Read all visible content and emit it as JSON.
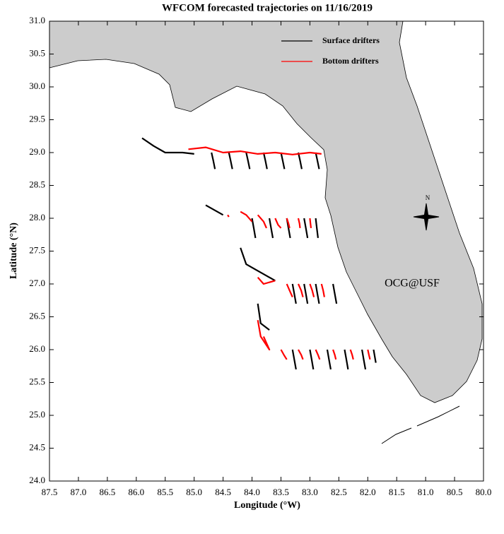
{
  "chart_data": {
    "type": "map",
    "title": "WFCOM forecasted trajectories on 11/16/2019",
    "xlabel": "Longitude (°W)",
    "ylabel": "Latitude (°N)",
    "xlim": [
      87.5,
      80.0
    ],
    "ylim": [
      24.0,
      31.0
    ],
    "xticks": [
      87.5,
      {
        "value": 87,
        "label": "87.0"
      },
      86.5,
      {
        "value": 86,
        "label": "86.0"
      },
      85.5,
      {
        "value": 85,
        "label": "85.0"
      },
      84.5,
      {
        "value": 84,
        "label": "84.0"
      },
      83.5,
      {
        "value": 83,
        "label": "83.0"
      },
      82.5,
      {
        "value": 82,
        "label": "82.0"
      },
      81.5,
      {
        "value": 81,
        "label": "81.0"
      },
      80.5,
      {
        "value": 80,
        "label": "80.0"
      }
    ],
    "yticks": [
      {
        "value": 24,
        "label": "24.0"
      },
      24.5,
      {
        "value": 25,
        "label": "25.0"
      },
      25.5,
      {
        "value": 26,
        "label": "26.0"
      },
      26.5,
      {
        "value": 27,
        "label": "27.0"
      },
      27.5,
      {
        "value": 28,
        "label": "28.0"
      },
      28.5,
      {
        "value": 29,
        "label": "29.0"
      },
      29.5,
      {
        "value": 30,
        "label": "30.0"
      },
      30.5,
      {
        "value": 31,
        "label": "31.0"
      }
    ],
    "legend": "upper right",
    "annotation": "OCG@USF",
    "compass_label": "N",
    "series": [
      {
        "name": "Surface drifters",
        "color": "#000000",
        "x": [
          85.9,
          85.7,
          85.5,
          85.2,
          85.0,
          null,
          84.7,
          84.67,
          84.64,
          null,
          84.4,
          84.37,
          84.34,
          null,
          84.1,
          84.07,
          84.04,
          null,
          83.8,
          83.77,
          83.74,
          null,
          83.5,
          83.47,
          83.44,
          null,
          83.2,
          83.17,
          83.14,
          null,
          82.9,
          82.87,
          82.84,
          null,
          84.8,
          84.6,
          84.5,
          null,
          84.0,
          83.97,
          83.94,
          null,
          83.7,
          83.67,
          83.64,
          null,
          83.4,
          83.37,
          83.34,
          null,
          83.1,
          83.07,
          83.04,
          null,
          82.9,
          82.88,
          82.86,
          null,
          84.2,
          84.1,
          83.8,
          83.6,
          null,
          83.3,
          83.27,
          83.24,
          null,
          83.1,
          83.07,
          83.04,
          null,
          82.9,
          82.87,
          82.84,
          null,
          82.6,
          82.57,
          82.54,
          null,
          83.9,
          83.85,
          83.7,
          null,
          83.3,
          83.27,
          83.24,
          null,
          83.0,
          82.97,
          82.94,
          null,
          82.7,
          82.67,
          82.64,
          null,
          82.4,
          82.37,
          82.34,
          null,
          82.1,
          82.07,
          82.04,
          null,
          81.9,
          81.88,
          81.86
        ],
        "y": [
          29.22,
          29.1,
          29.0,
          29.0,
          28.98,
          null,
          29.0,
          28.88,
          28.75,
          null,
          29.0,
          28.88,
          28.75,
          null,
          29.0,
          28.88,
          28.75,
          null,
          29.0,
          28.88,
          28.75,
          null,
          29.0,
          28.88,
          28.75,
          null,
          29.0,
          28.88,
          28.75,
          null,
          29.0,
          28.88,
          28.75,
          null,
          28.2,
          28.1,
          28.05,
          null,
          28.0,
          27.85,
          27.7,
          null,
          28.0,
          27.85,
          27.7,
          null,
          28.0,
          27.85,
          27.7,
          null,
          28.0,
          27.85,
          27.7,
          null,
          28.0,
          27.85,
          27.7,
          null,
          27.55,
          27.3,
          27.15,
          27.05,
          null,
          27.0,
          26.85,
          26.7,
          null,
          27.0,
          26.85,
          26.7,
          null,
          27.0,
          26.85,
          26.7,
          null,
          27.0,
          26.85,
          26.7,
          null,
          26.7,
          26.4,
          26.3,
          null,
          26.0,
          25.85,
          25.7,
          null,
          26.0,
          25.85,
          25.7,
          null,
          26.0,
          25.85,
          25.7,
          null,
          26.0,
          25.85,
          25.7,
          null,
          26.0,
          25.85,
          25.7,
          null,
          26.0,
          25.9,
          25.8
        ]
      },
      {
        "name": "Bottom drifters",
        "color": "#ff0000",
        "x": [
          85.1,
          84.8,
          84.5,
          84.2,
          83.9,
          83.6,
          83.3,
          83.0,
          82.8,
          null,
          84.4,
          84.42,
          null,
          84.2,
          84.1,
          84.0,
          null,
          83.9,
          83.8,
          83.75,
          null,
          83.6,
          83.55,
          83.5,
          null,
          83.4,
          83.37,
          83.35,
          null,
          83.2,
          83.18,
          83.17,
          null,
          83.0,
          82.99,
          82.98,
          null,
          83.9,
          83.8,
          83.6,
          null,
          83.4,
          83.35,
          83.3,
          null,
          83.2,
          83.15,
          83.12,
          null,
          83.0,
          82.96,
          82.93,
          null,
          82.8,
          82.77,
          82.75,
          null,
          83.9,
          83.85,
          83.7,
          83.8,
          null,
          83.5,
          83.45,
          83.4,
          null,
          83.2,
          83.15,
          83.12,
          null,
          82.9,
          82.86,
          82.83,
          null,
          82.6,
          82.57,
          82.55,
          null,
          82.3,
          82.27,
          82.25,
          null,
          82.0,
          81.98,
          81.96
        ],
        "y": [
          29.05,
          29.08,
          29.0,
          29.02,
          28.98,
          29.0,
          28.97,
          29.0,
          28.98,
          null,
          28.02,
          28.05,
          null,
          28.1,
          28.05,
          27.95,
          null,
          28.05,
          27.95,
          27.85,
          null,
          28.0,
          27.9,
          27.85,
          null,
          28.0,
          27.92,
          27.85,
          null,
          28.0,
          27.92,
          27.85,
          null,
          28.0,
          27.92,
          27.85,
          null,
          27.1,
          27.0,
          27.05,
          null,
          27.0,
          26.9,
          26.8,
          null,
          27.0,
          26.9,
          26.8,
          null,
          27.0,
          26.9,
          26.8,
          null,
          27.0,
          26.9,
          26.8,
          null,
          26.45,
          26.2,
          26.0,
          26.2,
          null,
          26.0,
          25.92,
          25.85,
          null,
          26.0,
          25.92,
          25.85,
          null,
          26.0,
          25.92,
          25.85,
          null,
          26.0,
          25.92,
          25.85,
          null,
          26.0,
          25.92,
          25.85,
          null,
          26.0,
          25.92,
          25.85
        ]
      }
    ]
  }
}
